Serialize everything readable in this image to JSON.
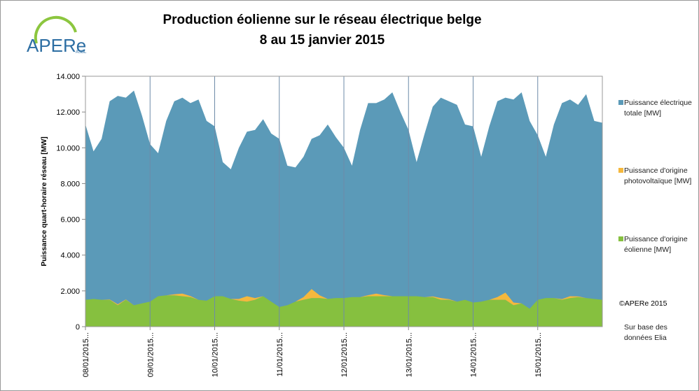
{
  "logo": {
    "name": "APERe",
    "sub": "ASBL"
  },
  "chart_data": {
    "type": "area",
    "title": "Production éolienne sur le réseau électrique belge",
    "subtitle": "8 au 15 janvier 2015",
    "y_label": "Puissance quart-horaire réseau [MW]",
    "ylim": [
      0,
      14000
    ],
    "yticks": [
      0,
      {
        "value": 2000,
        "label": "2.000"
      },
      {
        "value": 4000,
        "label": "4.000"
      },
      {
        "value": 6000,
        "label": "6.000"
      },
      {
        "value": 8000,
        "label": "8.000"
      },
      {
        "value": 10000,
        "label": "10.000"
      },
      {
        "value": 12000,
        "label": "12.000"
      },
      {
        "value": 14000,
        "label": "14.000"
      }
    ],
    "grid": "x",
    "categories": [
      "08/01/2015...",
      null,
      null,
      null,
      null,
      null,
      null,
      null,
      "09/01/2015...",
      null,
      null,
      null,
      null,
      null,
      null,
      null,
      "10/01/2015...",
      null,
      null,
      null,
      null,
      null,
      null,
      null,
      "11/01/2015...",
      null,
      null,
      null,
      null,
      null,
      null,
      null,
      "12/01/2015...",
      null,
      null,
      null,
      null,
      null,
      null,
      null,
      "13/01/2015...",
      null,
      null,
      null,
      null,
      null,
      null,
      null,
      "14/01/2015...",
      null,
      null,
      null,
      null,
      null,
      null,
      null,
      "15/01/2015...",
      null,
      null,
      null,
      null,
      null,
      null,
      null,
      null
    ],
    "series": [
      {
        "name": "Puissance électrique totale [MW]",
        "color": "#5b9ab8",
        "values": [
          11300,
          9800,
          10500,
          12600,
          12900,
          12800,
          13200,
          11800,
          10200,
          9700,
          11500,
          12600,
          12800,
          12500,
          12700,
          11500,
          11200,
          9200,
          8800,
          10000,
          10900,
          11000,
          11600,
          10800,
          10500,
          9000,
          8900,
          9500,
          10500,
          10700,
          11300,
          10600,
          10000,
          9000,
          11000,
          12500,
          12500,
          12700,
          13100,
          12000,
          11000,
          9200,
          10800,
          12300,
          12800,
          12600,
          12400,
          11300,
          11200,
          9500,
          11200,
          12600,
          12800,
          12700,
          13100,
          11500,
          10700,
          9500,
          11300,
          12500,
          12700,
          12400,
          13000,
          11500,
          11400
        ]
      },
      {
        "name": "Puissance d'origine photovoltaïque [MW]",
        "color": "#f5b83d",
        "values": [
          0,
          0,
          0,
          20,
          50,
          20,
          0,
          0,
          0,
          0,
          0,
          60,
          150,
          60,
          0,
          0,
          0,
          0,
          0,
          100,
          300,
          100,
          0,
          0,
          0,
          0,
          0,
          150,
          500,
          150,
          0,
          0,
          0,
          0,
          0,
          60,
          150,
          60,
          0,
          0,
          0,
          0,
          0,
          40,
          100,
          40,
          0,
          0,
          0,
          0,
          0,
          150,
          400,
          150,
          0,
          0,
          0,
          0,
          0,
          40,
          100,
          40,
          0,
          0,
          0
        ]
      },
      {
        "name": "Puissance d'origine éolienne [MW]",
        "color": "#86c03f",
        "values": [
          1500,
          1550,
          1500,
          1500,
          1200,
          1500,
          1200,
          1300,
          1400,
          1700,
          1750,
          1750,
          1700,
          1650,
          1500,
          1450,
          1700,
          1700,
          1550,
          1450,
          1400,
          1500,
          1700,
          1400,
          1100,
          1200,
          1400,
          1500,
          1600,
          1600,
          1550,
          1600,
          1600,
          1650,
          1650,
          1700,
          1700,
          1700,
          1700,
          1700,
          1700,
          1700,
          1650,
          1650,
          1500,
          1500,
          1400,
          1500,
          1350,
          1400,
          1500,
          1500,
          1500,
          1200,
          1300,
          1000,
          1500,
          1600,
          1600,
          1500,
          1600,
          1650,
          1600,
          1550,
          1500
        ]
      }
    ],
    "notes": [
      "©APERe 2015",
      "Sur base des données Elia"
    ]
  }
}
